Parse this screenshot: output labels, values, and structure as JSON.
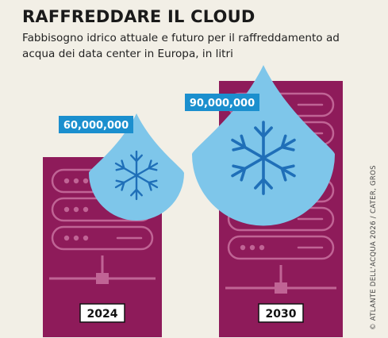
{
  "title": "RAFFREDDARE IL CLOUD",
  "subtitle": "Fabbisogno idrico attuale e futuro per il raffreddamento ad acqua dei data center in Europa, in litri",
  "credit": "© ATLANTE DELL'ACQUA 2026 / CATER, GROS",
  "colors": {
    "server": "#8e1b5a",
    "server_line": "#c06495",
    "drop": "#7ec6ea",
    "label_bg": "#1b8fce",
    "snowflake": "#1f6fb8"
  },
  "chart_data": {
    "type": "bar",
    "categories": [
      "2024",
      "2030"
    ],
    "values": [
      60000000,
      90000000
    ],
    "value_labels": [
      "60,000,000",
      "90,000,000"
    ],
    "title": "RAFFREDDARE IL CLOUD",
    "subtitle": "Fabbisogno idrico attuale e futuro per il raffreddamento ad acqua dei data center in Europa, in litri",
    "xlabel": "",
    "ylabel": "",
    "unit": "litri"
  }
}
